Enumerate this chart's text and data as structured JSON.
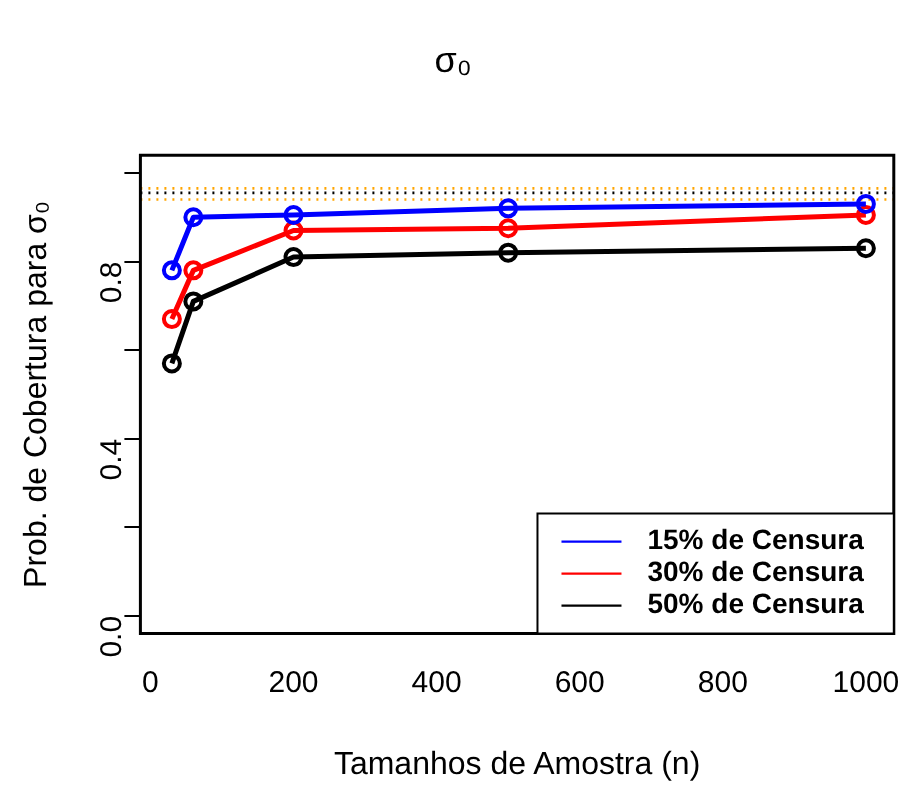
{
  "chart_data": {
    "type": "line",
    "title": "σ₀",
    "xlabel": "Tamanhos de Amostra (n)",
    "ylabel": "Prob. de Cobertura para σ₀",
    "x": [
      30,
      60,
      200,
      500,
      1000
    ],
    "series": [
      {
        "name": "15% de Censura",
        "color": "#0000ff",
        "values": [
          0.78,
          0.9,
          0.905,
          0.92,
          0.93
        ]
      },
      {
        "name": "30% de Censura",
        "color": "#ff0000",
        "values": [
          0.67,
          0.78,
          0.87,
          0.875,
          0.905
        ]
      },
      {
        "name": "50% de Censura",
        "color": "#000000",
        "values": [
          0.57,
          0.71,
          0.81,
          0.82,
          0.83
        ]
      }
    ],
    "xlim": [
      -14,
      1039
    ],
    "xticks": [
      0,
      200,
      400,
      600,
      800,
      1000
    ],
    "ylim": [
      -0.04,
      1.04
    ],
    "yticks": [
      {
        "value": 0,
        "label": "0.0"
      },
      {
        "value": 0.2,
        "label": null
      },
      {
        "value": 0.4,
        "label": "0.4"
      },
      {
        "value": 0.6,
        "label": null
      },
      {
        "value": 0.8,
        "label": "0.8"
      },
      {
        "value": 1,
        "label": null
      }
    ],
    "ref_lines": [
      {
        "axis": "y",
        "value": 0.965,
        "color": "#ffa500",
        "line_style": "dotted"
      },
      {
        "axis": "y",
        "value": 0.955,
        "color": "#000000",
        "line_style": "dotted"
      },
      {
        "axis": "y",
        "value": 0.94,
        "color": "#ffa500",
        "line_style": "dotted"
      }
    ],
    "marker": "circle",
    "line_style": "solid",
    "grid": false,
    "legend": "bottom right"
  }
}
